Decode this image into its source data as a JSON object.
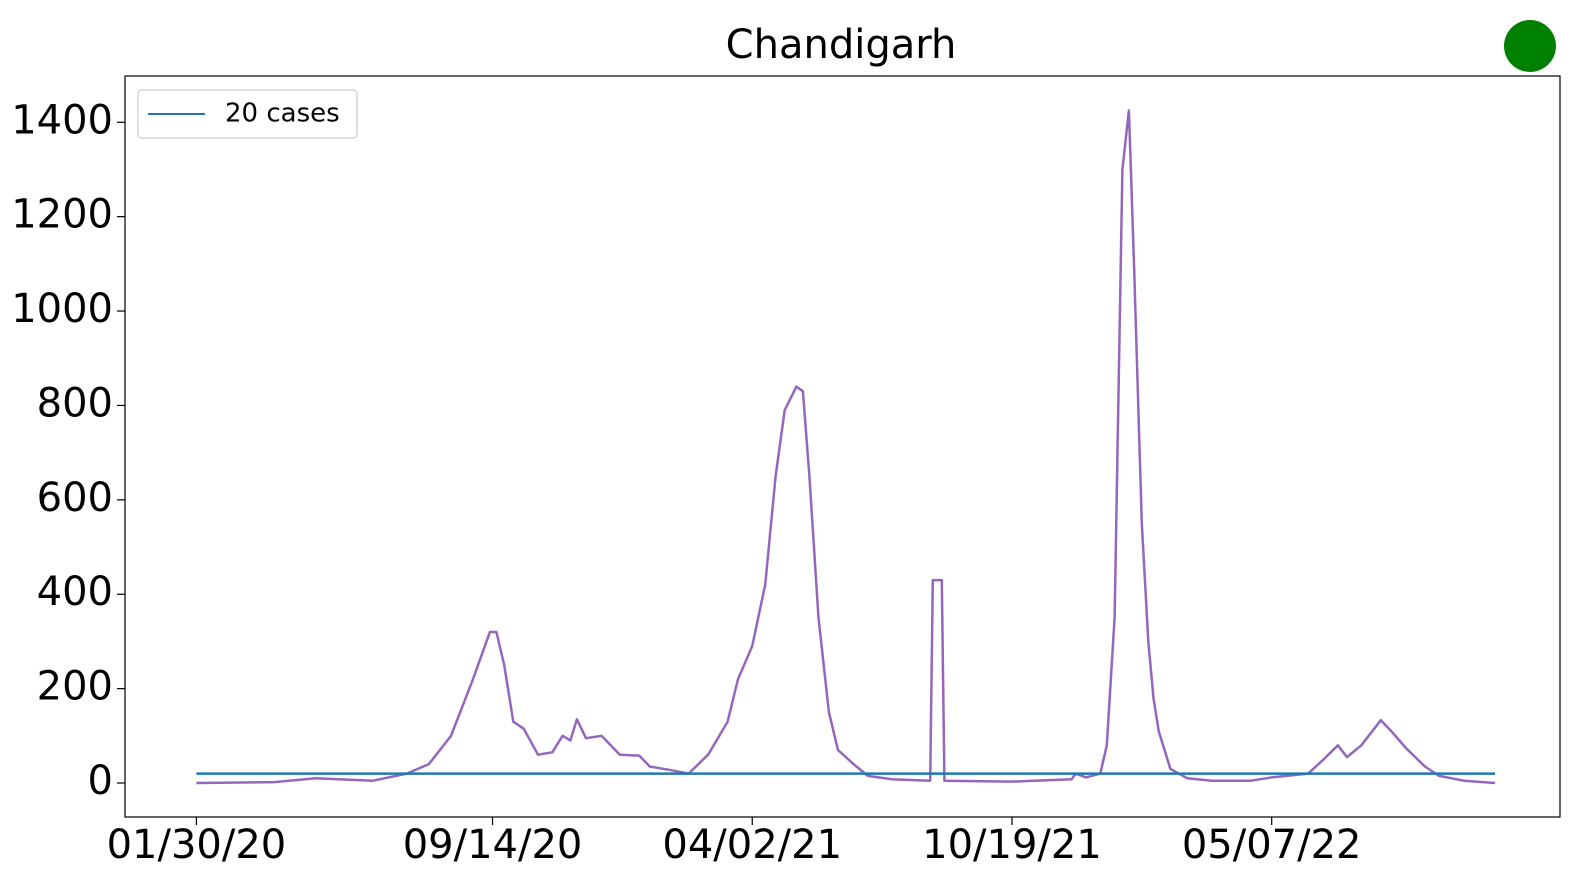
{
  "chart_data": {
    "type": "line",
    "title": "Chandigarh",
    "series": [
      {
        "color": "#9467bd",
        "x": [
          "01/30/20",
          "03/30/20",
          "05/01/20",
          "06/14/20",
          "07/10/20",
          "07/27/20",
          "08/13/20",
          "08/30/20",
          "09/12/20",
          "09/17/20",
          "09/23/20",
          "09/30/20",
          "10/08/20",
          "10/19/20",
          "10/30/20",
          "11/07/20",
          "11/13/20",
          "11/18/20",
          "11/25/20",
          "12/07/20",
          "12/21/20",
          "01/05/21",
          "01/13/21",
          "01/28/21",
          "02/12/21",
          "02/27/21",
          "03/14/21",
          "03/22/21",
          "04/02/21",
          "04/12/21",
          "04/20/21",
          "04/27/21",
          "05/06/21",
          "05/11/21",
          "05/16/21",
          "05/23/21",
          "05/31/21",
          "06/07/21",
          "06/19/21",
          "06/30/21",
          "07/18/21",
          "08/17/21",
          "08/19/21",
          "08/26/21",
          "08/28/21",
          "10/19/21",
          "12/04/21",
          "12/07/21",
          "12/15/21",
          "12/26/21",
          "12/31/21",
          "01/06/22",
          "01/12/22",
          "01/17/22",
          "01/21/22",
          "01/27/22",
          "02/01/22",
          "02/05/22",
          "02/09/22",
          "02/18/22",
          "03/03/22",
          "03/22/22",
          "04/21/22",
          "05/07/22",
          "06/04/22",
          "06/16/22",
          "06/27/22",
          "07/04/22",
          "07/15/22",
          "07/30/22",
          "08/07/22",
          "08/18/22",
          "09/02/22",
          "09/13/22",
          "10/02/22",
          "10/26/22"
        ],
        "values": [
          0,
          2,
          10,
          5,
          20,
          40,
          100,
          220,
          320,
          320,
          250,
          130,
          115,
          60,
          65,
          100,
          90,
          135,
          95,
          100,
          60,
          58,
          35,
          28,
          20,
          60,
          130,
          220,
          290,
          420,
          650,
          790,
          840,
          830,
          650,
          350,
          150,
          70,
          40,
          15,
          8,
          5,
          430,
          430,
          5,
          3,
          8,
          20,
          12,
          20,
          80,
          350,
          1300,
          1425,
          1100,
          550,
          300,
          180,
          110,
          30,
          10,
          5,
          5,
          12,
          20,
          50,
          80,
          55,
          80,
          133,
          110,
          75,
          35,
          15,
          5,
          0
        ]
      },
      {
        "name": "20 cases",
        "color": "#1f77b4",
        "x": [
          "01/30/20",
          "10/26/22"
        ],
        "values": [
          20,
          20
        ]
      }
    ],
    "xlim": [
      "12/06/19",
      "12/15/22"
    ],
    "xticks": [
      "01/30/20",
      "09/14/20",
      "04/02/21",
      "10/19/21",
      "05/07/22"
    ],
    "ylim": [
      -72,
      1498
    ],
    "yticks": [
      0,
      200,
      400,
      600,
      800,
      1000,
      1200,
      1400
    ],
    "legend": "upper-left",
    "grid": false
  }
}
